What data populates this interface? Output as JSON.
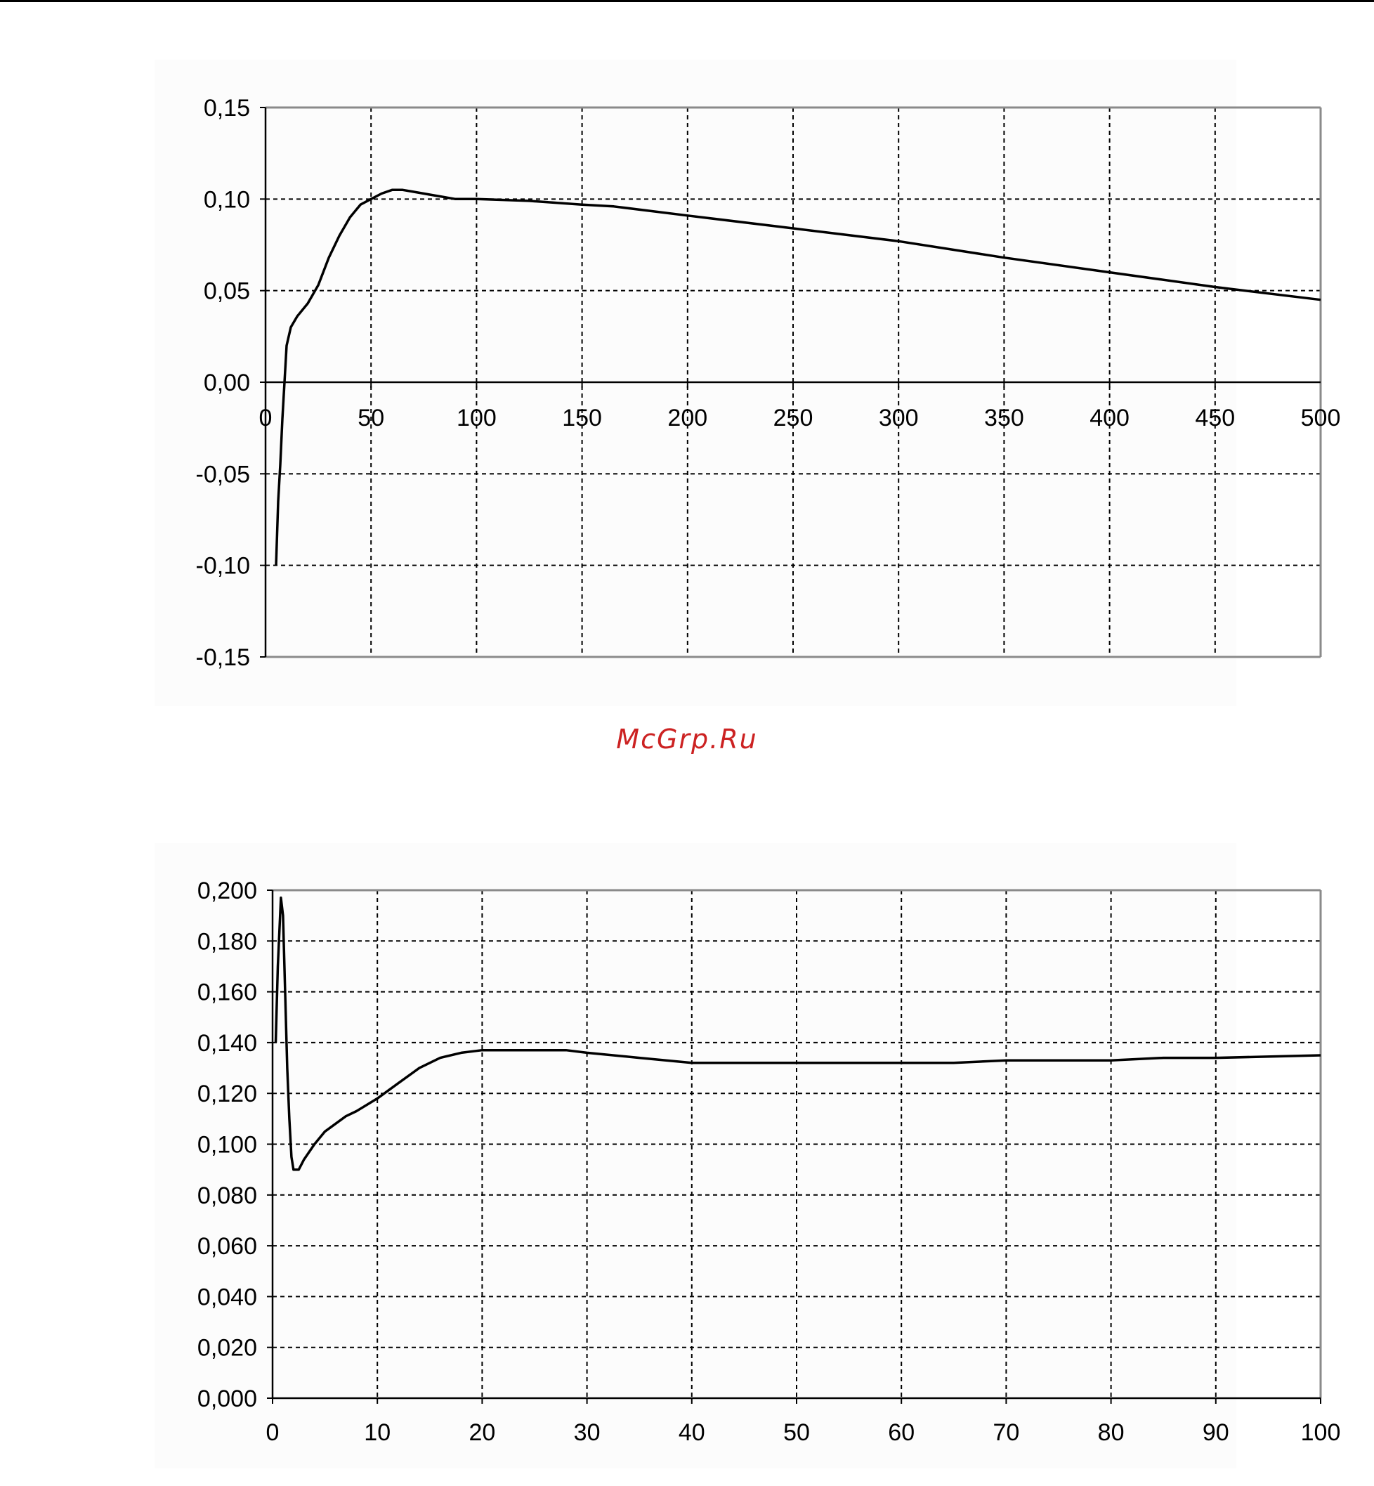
{
  "watermark": "McGrp.Ru",
  "chart_data": [
    {
      "type": "line",
      "title": "",
      "xlabel": "",
      "ylabel": "",
      "xlim": [
        0,
        500
      ],
      "ylim": [
        -0.15,
        0.15
      ],
      "x_ticks": [
        "0",
        "50",
        "100",
        "150",
        "200",
        "250",
        "300",
        "350",
        "400",
        "450",
        "500"
      ],
      "y_ticks": [
        "0,15",
        "0,10",
        "0,05",
        "0,00",
        "-0,05",
        "-0,10",
        "-0,15"
      ],
      "grid": true,
      "legend": "none",
      "line_color": "#000000",
      "series": [
        {
          "x": [
            5,
            6,
            7,
            8,
            9,
            10,
            12,
            15,
            20,
            25,
            30,
            35,
            40,
            45,
            50,
            55,
            60,
            65,
            70,
            80,
            90,
            100,
            125,
            150,
            165,
            200,
            250,
            300,
            350,
            400,
            450,
            500
          ],
          "y": [
            -0.1,
            -0.065,
            -0.045,
            -0.02,
            0.0,
            0.02,
            0.03,
            0.036,
            0.043,
            0.053,
            0.068,
            0.08,
            0.09,
            0.097,
            0.1,
            0.103,
            0.105,
            0.105,
            0.104,
            0.102,
            0.1,
            0.1,
            0.099,
            0.097,
            0.096,
            0.091,
            0.084,
            0.077,
            0.068,
            0.06,
            0.052,
            0.045
          ]
        }
      ]
    },
    {
      "type": "line",
      "title": "",
      "xlabel": "",
      "ylabel": "",
      "xlim": [
        0,
        100
      ],
      "ylim": [
        0,
        0.2
      ],
      "x_ticks": [
        "0",
        "10",
        "20",
        "30",
        "40",
        "50",
        "60",
        "70",
        "80",
        "90",
        "100"
      ],
      "y_ticks": [
        "0,200",
        "0,180",
        "0,160",
        "0,140",
        "0,120",
        "0,100",
        "0,080",
        "0,060",
        "0,040",
        "0,020",
        "0,000"
      ],
      "grid": true,
      "legend": "none",
      "line_color": "#000000",
      "series": [
        {
          "x": [
            0.3,
            0.5,
            0.8,
            1.0,
            1.2,
            1.4,
            1.6,
            1.8,
            2.0,
            2.5,
            3,
            4,
            5,
            6,
            7,
            8,
            10,
            12,
            14,
            16,
            18,
            20,
            22,
            25,
            28,
            30,
            35,
            40,
            45,
            50,
            60,
            65,
            70,
            80,
            85,
            90,
            100
          ],
          "y": [
            0.14,
            0.17,
            0.197,
            0.19,
            0.16,
            0.13,
            0.11,
            0.095,
            0.09,
            0.09,
            0.094,
            0.1,
            0.105,
            0.108,
            0.111,
            0.113,
            0.118,
            0.124,
            0.13,
            0.134,
            0.136,
            0.137,
            0.137,
            0.137,
            0.137,
            0.136,
            0.134,
            0.132,
            0.132,
            0.132,
            0.132,
            0.132,
            0.133,
            0.133,
            0.134,
            0.134,
            0.135
          ]
        }
      ]
    }
  ]
}
